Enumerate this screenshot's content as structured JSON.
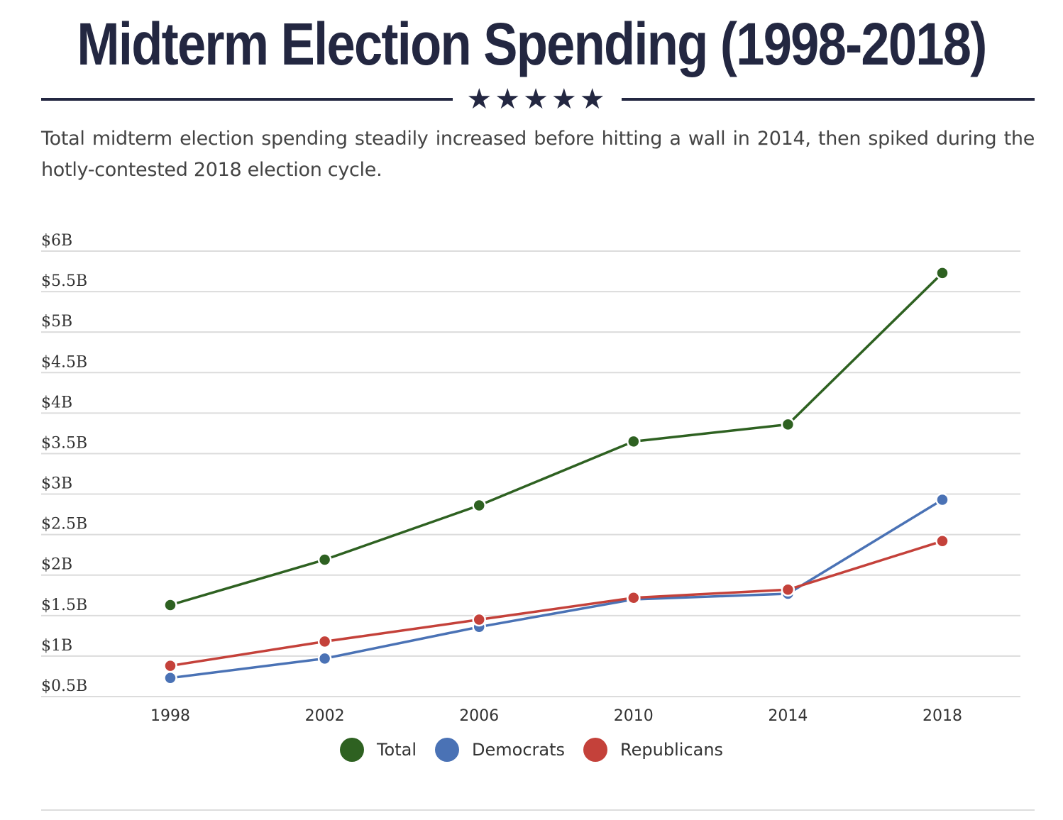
{
  "header": {
    "title": "Midterm Election Spending (1998-2018)",
    "stars": "★★★★★",
    "subtitle": "Total midterm election spending steadily increased before hitting a wall in 2014, then spiked during the hotly-contested 2018 election cycle."
  },
  "chart_data": {
    "type": "line",
    "x": [
      1998,
      2002,
      2006,
      2010,
      2014,
      2018
    ],
    "x_tick_labels": [
      "1998",
      "2002",
      "2006",
      "2010",
      "2014",
      "2018"
    ],
    "ylim": [
      0.5,
      6
    ],
    "y_ticks": [
      0.5,
      1,
      1.5,
      2,
      2.5,
      3,
      3.5,
      4,
      4.5,
      5,
      5.5,
      6
    ],
    "y_tick_labels": [
      "$0.5B",
      "$1B",
      "$1.5B",
      "$2B",
      "$2.5B",
      "$3B",
      "$3.5B",
      "$4B",
      "$4.5B",
      "$5B",
      "$5.5B",
      "$6B"
    ],
    "grid": true,
    "legend_position": "bottom",
    "series": [
      {
        "name": "Total",
        "color": "#2e6121",
        "values": [
          1.63,
          2.19,
          2.86,
          3.65,
          3.86,
          5.73
        ]
      },
      {
        "name": "Democrats",
        "color": "#4a72b5",
        "values": [
          0.73,
          0.97,
          1.36,
          1.7,
          1.77,
          2.93
        ]
      },
      {
        "name": "Republicans",
        "color": "#c4413a",
        "values": [
          0.88,
          1.18,
          1.45,
          1.72,
          1.82,
          2.42
        ]
      }
    ]
  }
}
